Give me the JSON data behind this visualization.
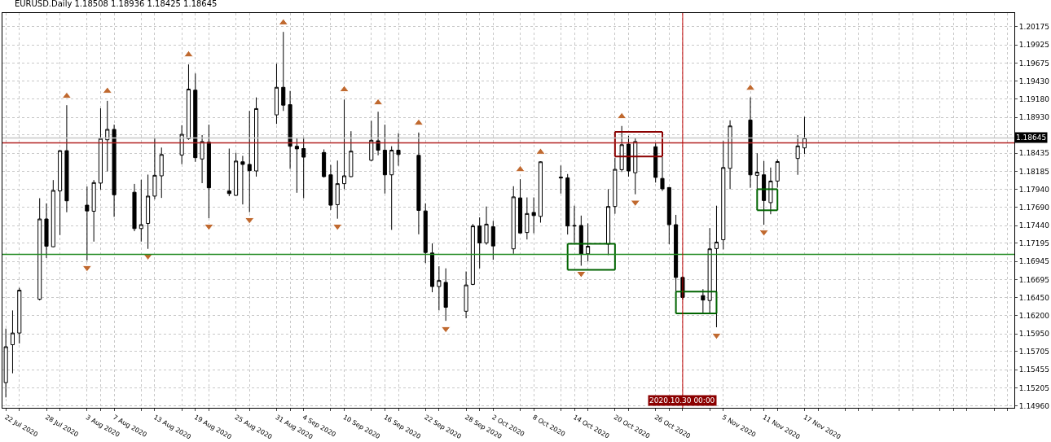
{
  "chart_data": {
    "type": "candlestick",
    "title": "EURUSD.Daily 1.18508 1.18936 1.18425 1.18645",
    "x": [
      "2020-07-22",
      "2020-07-23",
      "2020-07-24",
      "2020-07-27",
      "2020-07-28",
      "2020-07-29",
      "2020-07-30",
      "2020-07-31",
      "2020-08-03",
      "2020-08-04",
      "2020-08-05",
      "2020-08-06",
      "2020-08-07",
      "2020-08-10",
      "2020-08-11",
      "2020-08-12",
      "2020-08-13",
      "2020-08-14",
      "2020-08-17",
      "2020-08-18",
      "2020-08-19",
      "2020-08-20",
      "2020-08-21",
      "2020-08-24",
      "2020-08-25",
      "2020-08-26",
      "2020-08-27",
      "2020-08-28",
      "2020-08-31",
      "2020-09-01",
      "2020-09-02",
      "2020-09-03",
      "2020-09-04",
      "2020-09-07",
      "2020-09-08",
      "2020-09-09",
      "2020-09-10",
      "2020-09-11",
      "2020-09-14",
      "2020-09-15",
      "2020-09-16",
      "2020-09-17",
      "2020-09-18",
      "2020-09-21",
      "2020-09-22",
      "2020-09-23",
      "2020-09-24",
      "2020-09-25",
      "2020-09-28",
      "2020-09-29",
      "2020-09-30",
      "2020-10-01",
      "2020-10-02",
      "2020-10-05",
      "2020-10-06",
      "2020-10-07",
      "2020-10-08",
      "2020-10-09",
      "2020-10-12",
      "2020-10-13",
      "2020-10-14",
      "2020-10-15",
      "2020-10-16",
      "2020-10-19",
      "2020-10-20",
      "2020-10-21",
      "2020-10-22",
      "2020-10-23",
      "2020-10-26",
      "2020-10-27",
      "2020-10-28",
      "2020-10-29",
      "2020-10-30",
      "2020-11-02",
      "2020-11-03",
      "2020-11-04",
      "2020-11-05",
      "2020-11-06",
      "2020-11-09",
      "2020-11-10",
      "2020-11-11",
      "2020-11-12",
      "2020-11-13",
      "2020-11-16",
      "2020-11-17"
    ],
    "ohlc": [
      [
        1.15279,
        1.16022,
        1.15075,
        1.15772
      ],
      [
        1.158,
        1.16272,
        1.15407,
        1.15961
      ],
      [
        1.15961,
        1.16583,
        1.15818,
        1.16551
      ],
      [
        1.16426,
        1.17816,
        1.1641,
        1.1753
      ],
      [
        1.1753,
        1.17745,
        1.16994,
        1.17155
      ],
      [
        1.17148,
        1.18066,
        1.17141,
        1.17923
      ],
      [
        1.17916,
        1.1848,
        1.17309,
        1.1847
      ],
      [
        1.1847,
        1.19096,
        1.17623,
        1.1778
      ],
      [
        1.1772,
        1.17977,
        1.16958,
        1.17641
      ],
      [
        1.17637,
        1.18066,
        1.17219,
        1.18031
      ],
      [
        1.18024,
        1.19053,
        1.17934,
        1.18638
      ],
      [
        1.1862,
        1.19156,
        1.18184,
        1.18763
      ],
      [
        1.18763,
        1.18828,
        1.17559,
        1.17863
      ],
      [
        1.17898,
        1.18013,
        1.17362,
        1.17398
      ],
      [
        1.17398,
        1.1807,
        1.17219,
        1.17452
      ],
      [
        1.17469,
        1.18141,
        1.17119,
        1.17845
      ],
      [
        1.17845,
        1.18649,
        1.17802,
        1.18131
      ],
      [
        1.18124,
        1.18513,
        1.1782,
        1.18417
      ],
      [
        1.1841,
        1.1882,
        1.18284,
        1.18695
      ],
      [
        1.18635,
        1.19657,
        1.1862,
        1.19317
      ],
      [
        1.19303,
        1.19532,
        1.18317,
        1.18374
      ],
      [
        1.18356,
        1.18685,
        1.18023,
        1.18595
      ],
      [
        1.18588,
        1.18828,
        1.17541,
        1.17959
      ],
      [
        1.17916,
        1.18499,
        1.17845,
        1.1788
      ],
      [
        1.17855,
        1.18442,
        1.1785,
        1.18327
      ],
      [
        1.18317,
        1.18399,
        1.1773,
        1.18281
      ],
      [
        1.18281,
        1.19017,
        1.17623,
        1.18195
      ],
      [
        1.18191,
        1.19203,
        1.18113,
        1.19049
      ],
      [
        1.18963,
        1.19667,
        1.18838,
        1.19342
      ],
      [
        1.19342,
        1.20104,
        1.19017,
        1.19096
      ],
      [
        1.19103,
        1.19292,
        1.1822,
        1.18531
      ],
      [
        1.18531,
        1.18649,
        1.17891,
        1.18495
      ],
      [
        1.18499,
        1.18656,
        1.17816,
        1.18381
      ],
      [
        1.18445,
        1.18488,
        1.181,
        1.18113
      ],
      [
        1.18138,
        1.18274,
        1.17655,
        1.1772
      ],
      [
        1.17727,
        1.18334,
        1.17534,
        1.18016
      ],
      [
        1.18016,
        1.19174,
        1.17941,
        1.18124
      ],
      [
        1.18113,
        1.18738,
        1.18106,
        1.18463
      ],
      [
        1.18338,
        1.18881,
        1.18327,
        1.18613
      ],
      [
        1.18606,
        1.19006,
        1.18406,
        1.18477
      ],
      [
        1.18477,
        1.18828,
        1.1788,
        1.18138
      ],
      [
        1.18138,
        1.18531,
        1.1738,
        1.18477
      ],
      [
        1.18477,
        1.1871,
        1.18263,
        1.18417
      ],
      [
        1.18406,
        1.1872,
        1.17319,
        1.17648
      ],
      [
        1.17641,
        1.17745,
        1.16923,
        1.17069
      ],
      [
        1.17062,
        1.17194,
        1.16522,
        1.16601
      ],
      [
        1.16601,
        1.1688,
        1.16272,
        1.16683
      ],
      [
        1.16658,
        1.16851,
        1.16129,
        1.16315
      ],
      [
        1.16261,
        1.16808,
        1.16165,
        1.16622
      ],
      [
        1.1663,
        1.17462,
        1.1662,
        1.17434
      ],
      [
        1.17434,
        1.17552,
        1.16851,
        1.17201
      ],
      [
        1.17201,
        1.17702,
        1.17176,
        1.17459
      ],
      [
        1.17423,
        1.17505,
        1.16969,
        1.17159
      ],
      [
        1.17119,
        1.17981,
        1.17051,
        1.17834
      ],
      [
        1.1782,
        1.18077,
        1.1733,
        1.17337
      ],
      [
        1.17344,
        1.17827,
        1.17248,
        1.17605
      ],
      [
        1.1762,
        1.17827,
        1.17334,
        1.17577
      ],
      [
        1.17566,
        1.18325,
        1.1748,
        1.18317
      ],
      [
        1.18106,
        1.18266,
        1.1788,
        1.18095
      ],
      [
        1.18095,
        1.18149,
        1.17316,
        1.17434
      ],
      [
        1.17441,
        1.17713,
        1.17201,
        1.17434
      ],
      [
        1.17441,
        1.17577,
        1.16887,
        1.17048
      ],
      [
        1.17051,
        1.17469,
        1.16944,
        1.17155
      ],
      [
        1.17184,
        1.17941,
        1.17033,
        1.17702
      ],
      [
        1.17702,
        1.18374,
        1.17602,
        1.18213
      ],
      [
        1.18209,
        1.1881,
        1.18177,
        1.18552
      ],
      [
        1.1856,
        1.18674,
        1.18113,
        1.18191
      ],
      [
        1.18166,
        1.18642,
        1.1787,
        1.18595
      ],
      [
        1.18524,
        1.18577,
        1.18031,
        1.18102
      ],
      [
        1.18088,
        1.18381,
        1.17916,
        1.17945
      ],
      [
        1.17963,
        1.1797,
        1.17184,
        1.17452
      ],
      [
        1.17452,
        1.17587,
        1.1653,
        1.16726
      ],
      [
        1.16726,
        1.1674,
        1.1642,
        1.16451
      ],
      [
        1.16476,
        1.16565,
        1.16237,
        1.16415
      ],
      [
        1.16408,
        1.17405,
        1.16237,
        1.17119
      ],
      [
        1.17123,
        1.17713,
        1.1604,
        1.17212
      ],
      [
        1.17244,
        1.18602,
        1.17112,
        1.18238
      ],
      [
        1.18227,
        1.18888,
        1.17941,
        1.1881
      ],
      [
        1.18892,
        1.19203,
        1.17959,
        1.18138
      ],
      [
        1.18131,
        1.18435,
        1.17945,
        1.18174
      ],
      [
        1.18138,
        1.18327,
        1.17452,
        1.17784
      ],
      [
        1.17755,
        1.18238,
        1.17595,
        1.18052
      ],
      [
        1.18052,
        1.18352,
        1.1796,
        1.1832
      ],
      [
        1.18363,
        1.18685,
        1.18138,
        1.18535
      ],
      [
        1.18508,
        1.18936,
        1.18425,
        1.18645
      ]
    ],
    "series": [
      {
        "type": "scatter",
        "marker": "triangle",
        "color": "#c0692f",
        "x": [
          "2020-07-31",
          "2020-08-06",
          "2020-08-18",
          "2020-09-01",
          "2020-09-10",
          "2020-09-15",
          "2020-09-21",
          "2020-10-06",
          "2020-10-09",
          "2020-10-21",
          "2020-11-09"
        ],
        "values": [
          1.1922,
          1.1929,
          1.1979,
          1.2023,
          1.1931,
          1.1913,
          1.1885,
          1.1821,
          1.1845,
          1.1894,
          1.1933
        ]
      },
      {
        "type": "scatter",
        "marker": "triangle-down",
        "color": "#c0692f",
        "x": [
          "2020-08-03",
          "2020-08-12",
          "2020-08-21",
          "2020-08-27",
          "2020-09-09",
          "2020-09-25",
          "2020-10-15",
          "2020-10-23",
          "2020-11-04",
          "2020-11-11"
        ],
        "values": [
          1.1686,
          1.1702,
          1.1743,
          1.1752,
          1.1743,
          1.1602,
          1.1678,
          1.1776,
          1.1593,
          1.1735
        ]
      },
      {
        "type": "line",
        "color": "#8b0000",
        "x": [
          "2020-10-20",
          "2020-10-27"
        ],
        "values": [
          1.1873,
          1.1873
        ]
      },
      {
        "type": "line",
        "color": "#8b0000",
        "x": [
          "2020-10-20",
          "2020-10-27"
        ],
        "values": [
          1.1839,
          1.1839
        ]
      },
      {
        "type": "line",
        "color": "#8b0000",
        "x": [
          "2020-10-20",
          "2020-10-20"
        ],
        "values": [
          1.1839,
          1.1873
        ]
      },
      {
        "type": "line",
        "color": "#8b0000",
        "x": [
          "2020-10-27",
          "2020-10-27"
        ],
        "values": [
          1.1839,
          1.1873
        ]
      },
      {
        "type": "line",
        "color": "#006400",
        "x": [
          "2020-10-13",
          "2020-10-20"
        ],
        "values": [
          1.1719,
          1.1719
        ]
      },
      {
        "type": "line",
        "color": "#006400",
        "x": [
          "2020-10-13",
          "2020-10-20"
        ],
        "values": [
          1.1683,
          1.1683
        ]
      },
      {
        "type": "line",
        "color": "#006400",
        "x": [
          "2020-10-13",
          "2020-10-13"
        ],
        "values": [
          1.1683,
          1.1719
        ]
      },
      {
        "type": "line",
        "color": "#006400",
        "x": [
          "2020-10-20",
          "2020-10-20"
        ],
        "values": [
          1.1683,
          1.1719
        ]
      },
      {
        "type": "line",
        "color": "#006400",
        "x": [
          "2020-10-29",
          "2020-11-04"
        ],
        "values": [
          1.1653,
          1.1653
        ]
      },
      {
        "type": "line",
        "color": "#006400",
        "x": [
          "2020-10-29",
          "2020-11-04"
        ],
        "values": [
          1.1623,
          1.1623
        ]
      },
      {
        "type": "line",
        "color": "#006400",
        "x": [
          "2020-10-29",
          "2020-10-29"
        ],
        "values": [
          1.1623,
          1.1653
        ]
      },
      {
        "type": "line",
        "color": "#006400",
        "x": [
          "2020-11-04",
          "2020-11-04"
        ],
        "values": [
          1.1623,
          1.1653
        ]
      },
      {
        "type": "line",
        "color": "#006400",
        "x": [
          "2020-11-10",
          "2020-11-13"
        ],
        "values": [
          1.1794,
          1.1794
        ]
      },
      {
        "type": "line",
        "color": "#006400",
        "x": [
          "2020-11-10",
          "2020-11-13"
        ],
        "values": [
          1.1765,
          1.1765
        ]
      },
      {
        "type": "line",
        "color": "#006400",
        "x": [
          "2020-11-10",
          "2020-11-10"
        ],
        "values": [
          1.1765,
          1.1794
        ]
      },
      {
        "type": "line",
        "color": "#006400",
        "x": [
          "2020-11-13",
          "2020-11-13"
        ],
        "values": [
          1.1765,
          1.1794
        ]
      }
    ],
    "ref_lines": [
      {
        "axis": "y",
        "value": 1.18578,
        "color": "#b22222"
      },
      {
        "axis": "y",
        "value": 1.17043,
        "color": "#228b22"
      },
      {
        "axis": "y",
        "value": 1.18645,
        "label": "1.18645",
        "color": "#c8c8c8"
      },
      {
        "axis": "x",
        "value": "2020-10-30",
        "label": "2020.10.30 00:00",
        "color": "#c00000"
      }
    ],
    "xlim": [
      "2020-07-21T12:00",
      "2020-12-18"
    ],
    "xticks": [
      {
        "value": "2020-07-22",
        "label": "22 Jul 2020"
      },
      {
        "value": "2020-07-24",
        "label": null
      },
      {
        "value": "2020-07-28",
        "label": "28 Jul 2020"
      },
      {
        "value": "2020-07-30",
        "label": null
      },
      {
        "value": "2020-08-03",
        "label": "3 Aug 2020"
      },
      {
        "value": "2020-08-05",
        "label": null
      },
      {
        "value": "2020-08-07",
        "label": "7 Aug 2020"
      },
      {
        "value": "2020-08-11",
        "label": null
      },
      {
        "value": "2020-08-13",
        "label": "13 Aug 2020"
      },
      {
        "value": "2020-08-17",
        "label": null
      },
      {
        "value": "2020-08-19",
        "label": "19 Aug 2020"
      },
      {
        "value": "2020-08-21",
        "label": null
      },
      {
        "value": "2020-08-25",
        "label": "25 Aug 2020"
      },
      {
        "value": "2020-08-27",
        "label": null
      },
      {
        "value": "2020-08-31",
        "label": "31 Aug 2020"
      },
      {
        "value": "2020-09-02",
        "label": null
      },
      {
        "value": "2020-09-04",
        "label": "4 Sep 2020"
      },
      {
        "value": "2020-09-08",
        "label": null
      },
      {
        "value": "2020-09-10",
        "label": "10 Sep 2020"
      },
      {
        "value": "2020-09-14",
        "label": null
      },
      {
        "value": "2020-09-16",
        "label": "16 Sep 2020"
      },
      {
        "value": "2020-09-18",
        "label": null
      },
      {
        "value": "2020-09-22",
        "label": "22 Sep 2020"
      },
      {
        "value": "2020-09-24",
        "label": null
      },
      {
        "value": "2020-09-28",
        "label": "28 Sep 2020"
      },
      {
        "value": "2020-09-30",
        "label": null
      },
      {
        "value": "2020-10-02",
        "label": "2 Oct 2020"
      },
      {
        "value": "2020-10-06",
        "label": null
      },
      {
        "value": "2020-10-08",
        "label": "8 Oct 2020"
      },
      {
        "value": "2020-10-12",
        "label": null
      },
      {
        "value": "2020-10-14",
        "label": "14 Oct 2020"
      },
      {
        "value": "2020-10-16",
        "label": null
      },
      {
        "value": "2020-10-20",
        "label": "20 Oct 2020"
      },
      {
        "value": "2020-10-22",
        "label": null
      },
      {
        "value": "2020-10-26",
        "label": "26 Oct 2020"
      },
      {
        "value": "2020-10-28",
        "label": null
      },
      {
        "value": "2020-10-30",
        "label": null
      },
      {
        "value": "2020-11-03",
        "label": null
      },
      {
        "value": "2020-11-05",
        "label": "5 Nov 2020"
      },
      {
        "value": "2020-11-09",
        "label": null
      },
      {
        "value": "2020-11-11",
        "label": "11 Nov 2020"
      },
      {
        "value": "2020-11-13",
        "label": null
      },
      {
        "value": "2020-11-17",
        "label": "17 Nov 2020"
      },
      {
        "value": "2020-11-19",
        "label": null
      },
      {
        "value": "2020-11-23",
        "label": null
      },
      {
        "value": "2020-11-25",
        "label": null
      },
      {
        "value": "2020-11-27",
        "label": null
      },
      {
        "value": "2020-12-01",
        "label": null
      },
      {
        "value": "2020-12-03",
        "label": null
      },
      {
        "value": "2020-12-07",
        "label": null
      },
      {
        "value": "2020-12-09",
        "label": null
      },
      {
        "value": "2020-12-11",
        "label": null
      },
      {
        "value": "2020-12-15",
        "label": null
      },
      {
        "value": "2020-12-17",
        "label": null
      }
    ],
    "ylim": [
      1.14932,
      1.20364
    ],
    "yticks": [
      {
        "value": 1.1496,
        "label": "1.14960"
      },
      {
        "value": 1.15205,
        "label": "1.15205"
      },
      {
        "value": 1.15455,
        "label": "1.15455"
      },
      {
        "value": 1.15705,
        "label": "1.15705"
      },
      {
        "value": 1.1595,
        "label": "1.15950"
      },
      {
        "value": 1.162,
        "label": "1.16200"
      },
      {
        "value": 1.1645,
        "label": "1.16450"
      },
      {
        "value": 1.16695,
        "label": "1.16695"
      },
      {
        "value": 1.16945,
        "label": "1.16945"
      },
      {
        "value": 1.17195,
        "label": "1.17195"
      },
      {
        "value": 1.1744,
        "label": "1.17440"
      },
      {
        "value": 1.1769,
        "label": "1.17690"
      },
      {
        "value": 1.1794,
        "label": "1.17940"
      },
      {
        "value": 1.18185,
        "label": "1.18185"
      },
      {
        "value": 1.18435,
        "label": "1.18435"
      },
      {
        "value": 1.18685,
        "label": null
      },
      {
        "value": 1.1893,
        "label": "1.18930"
      },
      {
        "value": 1.1918,
        "label": "1.19180"
      },
      {
        "value": 1.1943,
        "label": "1.19430"
      },
      {
        "value": 1.19675,
        "label": "1.19675"
      },
      {
        "value": 1.19925,
        "label": "1.19925"
      },
      {
        "value": 1.20175,
        "label": "1.20175"
      }
    ],
    "grid": true
  }
}
